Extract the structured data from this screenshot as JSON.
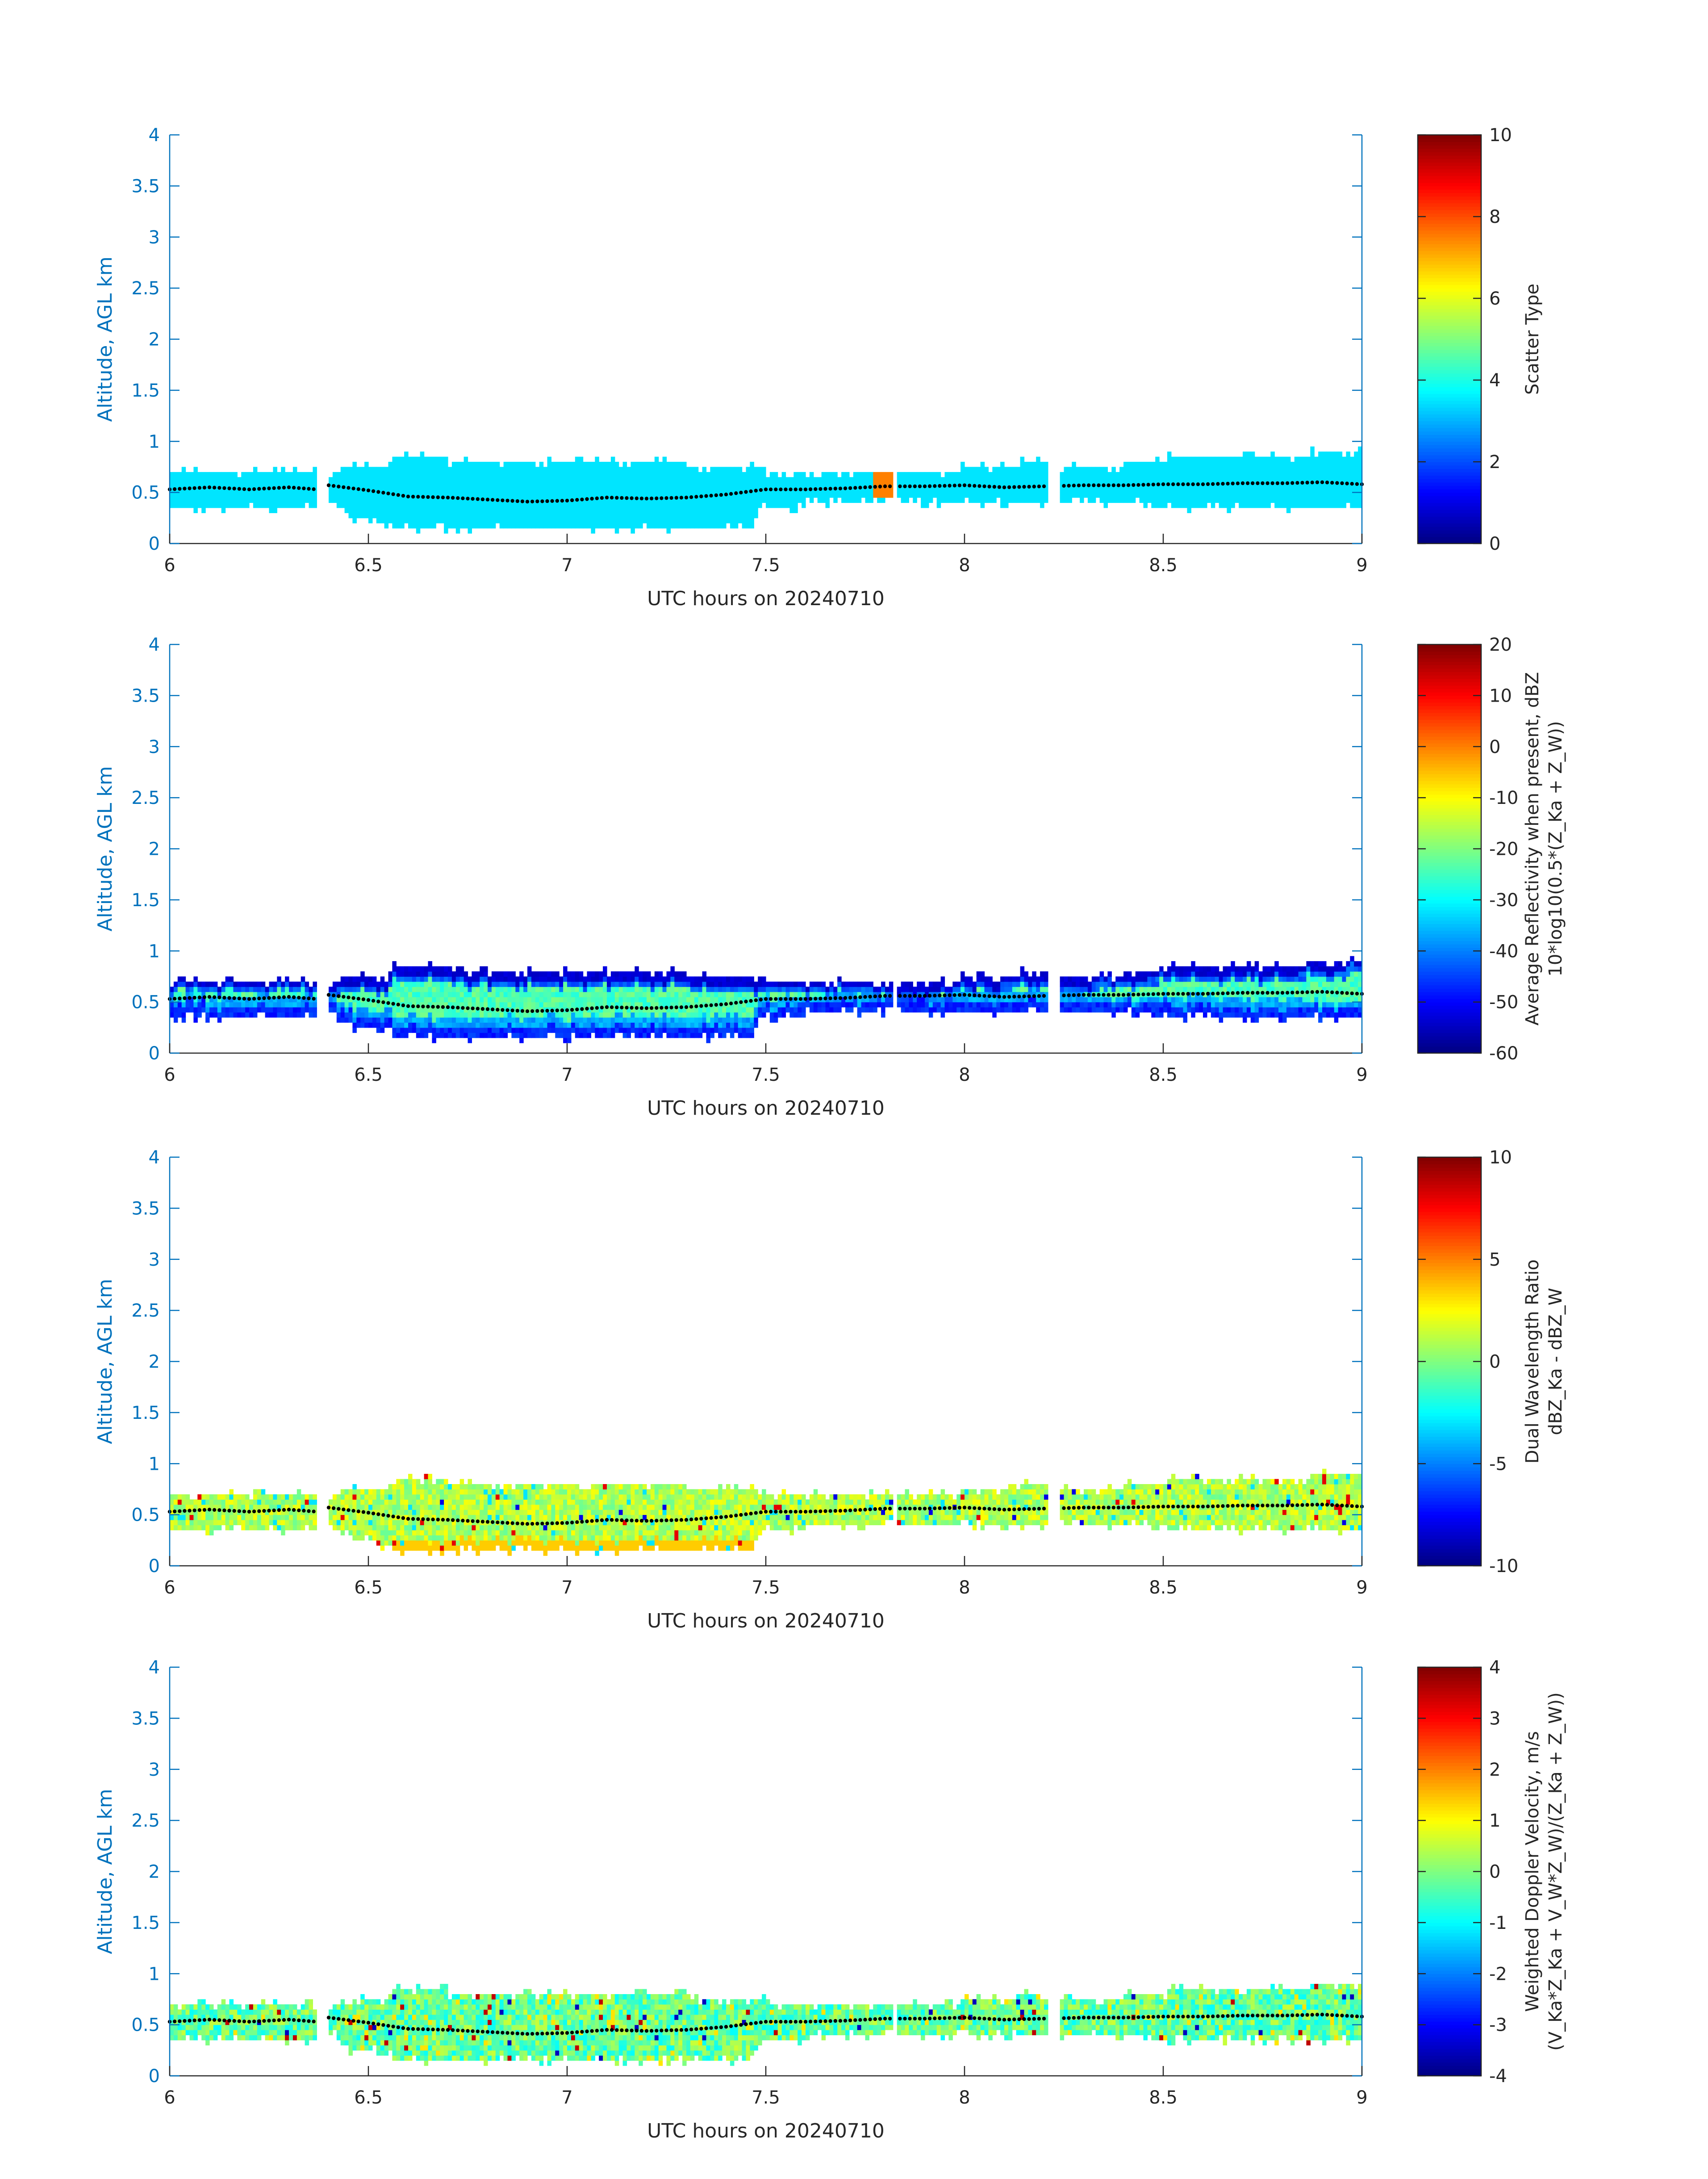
{
  "figure": {
    "xlabel": "UTC hours on 20240710",
    "ylabel": "Altitude, AGL km"
  },
  "chart_data": [
    {
      "type": "heatmap",
      "xlabel": "UTC hours on 20240710",
      "ylabel": "Altitude, AGL km",
      "xlim": [
        6,
        9
      ],
      "ylim": [
        0,
        4
      ],
      "xticks": [
        "6",
        "6.5",
        "7",
        "7.5",
        "8",
        "8.5",
        "9"
      ],
      "yticks": [
        "0",
        "0.5",
        "1",
        "1.5",
        "2",
        "2.5",
        "3",
        "3.5",
        "4"
      ],
      "colorbar": {
        "label": [
          "Scatter Type"
        ],
        "clim": [
          0,
          10
        ],
        "ticks": [
          "0",
          "2",
          "4",
          "6",
          "8",
          "10"
        ]
      },
      "colormap": "jet",
      "field": "scatter_type",
      "dominant_value": 3.5,
      "notes": "cloud layer ~0.2-0.85 km, uniform scatter type ~3.5; isolated value ~7.5 near 7.78-7.82 h"
    },
    {
      "type": "heatmap",
      "xlabel": "UTC hours on 20240710",
      "ylabel": "Altitude, AGL km",
      "xlim": [
        6,
        9
      ],
      "ylim": [
        0,
        4
      ],
      "xticks": [
        "6",
        "6.5",
        "7",
        "7.5",
        "8",
        "8.5",
        "9"
      ],
      "yticks": [
        "0",
        "0.5",
        "1",
        "1.5",
        "2",
        "2.5",
        "3",
        "3.5",
        "4"
      ],
      "colorbar": {
        "label": [
          "Average Reflectivity when present, dBZ",
          "10*log10(0.5*(Z_Ka + Z_W))"
        ],
        "clim": [
          -60,
          20
        ],
        "ticks": [
          "-60",
          "-50",
          "-40",
          "-30",
          "-20",
          "-10",
          "0",
          "10",
          "20"
        ]
      },
      "colormap": "jet",
      "field": "reflectivity_dBZ",
      "range_in_cloud": [
        -58,
        -22
      ]
    },
    {
      "type": "heatmap",
      "xlabel": "UTC hours on 20240710",
      "ylabel": "Altitude, AGL km",
      "xlim": [
        6,
        9
      ],
      "ylim": [
        0,
        4
      ],
      "xticks": [
        "6",
        "6.5",
        "7",
        "7.5",
        "8",
        "8.5",
        "9"
      ],
      "yticks": [
        "0",
        "0.5",
        "1",
        "1.5",
        "2",
        "2.5",
        "3",
        "3.5",
        "4"
      ],
      "colorbar": {
        "label": [
          "Dual Wavelength Ratio",
          "dBZ_Ka - dBZ_W"
        ],
        "clim": [
          -10,
          10
        ],
        "ticks": [
          "-10",
          "-5",
          "0",
          "5",
          "10"
        ]
      },
      "colormap": "jet",
      "field": "dual_wavelength_ratio",
      "range_in_cloud": [
        -2,
        3
      ]
    },
    {
      "type": "heatmap",
      "xlabel": "UTC hours on 20240710",
      "ylabel": "Altitude, AGL km",
      "xlim": [
        6,
        9
      ],
      "ylim": [
        0,
        4
      ],
      "xticks": [
        "6",
        "6.5",
        "7",
        "7.5",
        "8",
        "8.5",
        "9"
      ],
      "yticks": [
        "0",
        "0.5",
        "1",
        "1.5",
        "2",
        "2.5",
        "3",
        "3.5",
        "4"
      ],
      "colorbar": {
        "label": [
          "Weighted Doppler Velocity, m/s",
          "(V_Ka*Z_Ka + V_W*Z_W)/(Z_Ka + Z_W))"
        ],
        "clim": [
          -4,
          4
        ],
        "ticks": [
          "-4",
          "-3",
          "-2",
          "-1",
          "0",
          "1",
          "2",
          "3",
          "4"
        ]
      },
      "colormap": "jet",
      "field": "doppler_velocity",
      "range_in_cloud": [
        -1.5,
        1
      ]
    }
  ],
  "cloud_layer": {
    "gaps_h": [
      [
        6.37,
        6.4
      ],
      [
        7.82,
        7.83
      ],
      [
        8.21,
        8.24
      ]
    ],
    "top_km": [
      [
        6.0,
        0.7
      ],
      [
        6.37,
        0.7
      ],
      [
        6.4,
        0.63
      ],
      [
        6.43,
        0.7
      ],
      [
        6.55,
        0.72
      ],
      [
        6.56,
        0.82
      ],
      [
        6.7,
        0.8
      ],
      [
        6.71,
        0.77
      ],
      [
        7.3,
        0.77
      ],
      [
        7.31,
        0.72
      ],
      [
        7.5,
        0.7
      ],
      [
        7.8,
        0.7
      ],
      [
        7.84,
        0.65
      ],
      [
        8.2,
        0.77
      ],
      [
        8.25,
        0.72
      ],
      [
        8.4,
        0.75
      ],
      [
        8.45,
        0.78
      ],
      [
        8.56,
        0.82
      ],
      [
        8.7,
        0.8
      ],
      [
        8.82,
        0.82
      ],
      [
        8.9,
        0.87
      ],
      [
        9.0,
        0.9
      ]
    ],
    "base_km": [
      [
        6.0,
        0.4
      ],
      [
        6.37,
        0.38
      ],
      [
        6.4,
        0.45
      ],
      [
        6.45,
        0.3
      ],
      [
        6.55,
        0.23
      ],
      [
        6.57,
        0.18
      ],
      [
        7.47,
        0.18
      ],
      [
        7.48,
        0.37
      ],
      [
        7.8,
        0.45
      ],
      [
        7.84,
        0.45
      ],
      [
        8.2,
        0.42
      ],
      [
        8.25,
        0.42
      ],
      [
        8.8,
        0.37
      ],
      [
        9.0,
        0.35
      ]
    ],
    "top_height_km": [
      [
        6.0,
        0.53
      ],
      [
        6.1,
        0.55
      ],
      [
        6.2,
        0.53
      ],
      [
        6.3,
        0.55
      ],
      [
        6.37,
        0.53
      ],
      [
        6.4,
        0.57
      ],
      [
        6.5,
        0.52
      ],
      [
        6.6,
        0.46
      ],
      [
        6.7,
        0.45
      ],
      [
        6.8,
        0.43
      ],
      [
        6.9,
        0.41
      ],
      [
        7.0,
        0.42
      ],
      [
        7.1,
        0.45
      ],
      [
        7.2,
        0.44
      ],
      [
        7.3,
        0.45
      ],
      [
        7.4,
        0.48
      ],
      [
        7.5,
        0.53
      ],
      [
        7.6,
        0.53
      ],
      [
        7.7,
        0.54
      ],
      [
        7.8,
        0.56
      ],
      [
        7.9,
        0.56
      ],
      [
        8.0,
        0.57
      ],
      [
        8.1,
        0.55
      ],
      [
        8.2,
        0.56
      ],
      [
        8.3,
        0.57
      ],
      [
        8.4,
        0.57
      ],
      [
        8.5,
        0.58
      ],
      [
        8.6,
        0.58
      ],
      [
        8.7,
        0.59
      ],
      [
        8.8,
        0.59
      ],
      [
        8.9,
        0.6
      ],
      [
        9.0,
        0.58
      ]
    ]
  }
}
